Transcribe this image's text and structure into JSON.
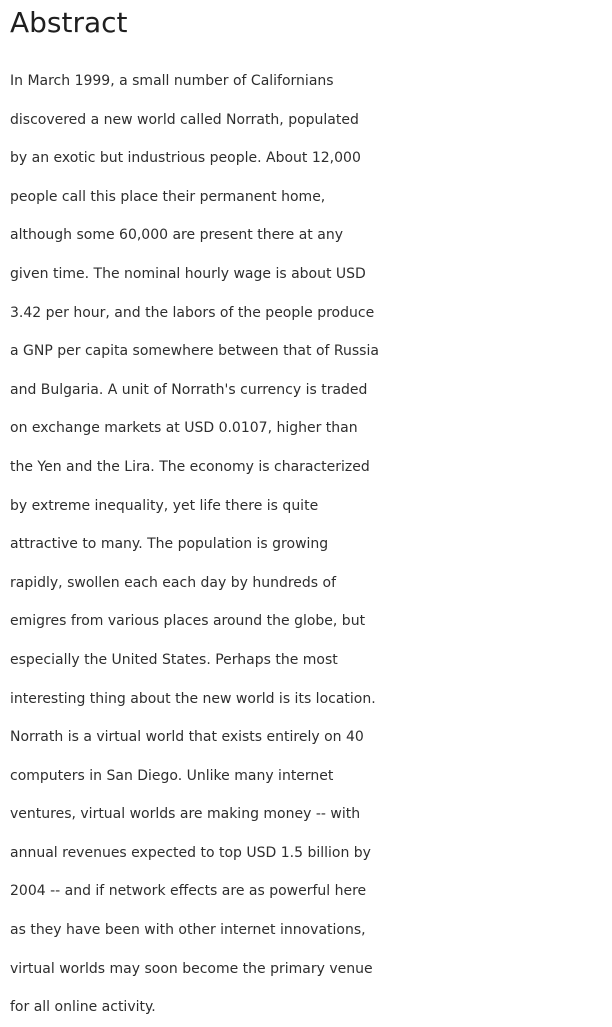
{
  "section": {
    "heading": "Abstract",
    "lines": [
      "In March 1999, a small number of Californians",
      "discovered a new world called Norrath, populated",
      "by an exotic but industrious people. About 12,000",
      "people call this place their permanent home,",
      "although some 60,000 are present there at any",
      "given time. The nominal hourly wage is about USD",
      "3.42 per hour, and the labors of the people produce",
      "a GNP per capita somewhere between that of Russia",
      "and Bulgaria. A unit of Norrath's currency is traded",
      "on exchange markets at USD 0.0107, higher than",
      "the Yen and the Lira. The economy is characterized",
      "by extreme inequality, yet life there is quite",
      "attractive to many. The population is growing",
      "rapidly, swollen each each day by hundreds of",
      "emigres from various places around the globe, but",
      "especially the United States. Perhaps the most",
      "interesting thing about the new world is its location.",
      "Norrath is a virtual world that exists entirely on 40",
      "computers in San Diego. Unlike many internet",
      "ventures, virtual worlds are making money -- with",
      "annual revenues expected to top USD 1.5 billion by",
      "2004 -- and if network effects are as powerful here",
      "as they have been with other internet innovations,",
      "virtual worlds may soon become the primary venue",
      "for all online activity."
    ]
  }
}
